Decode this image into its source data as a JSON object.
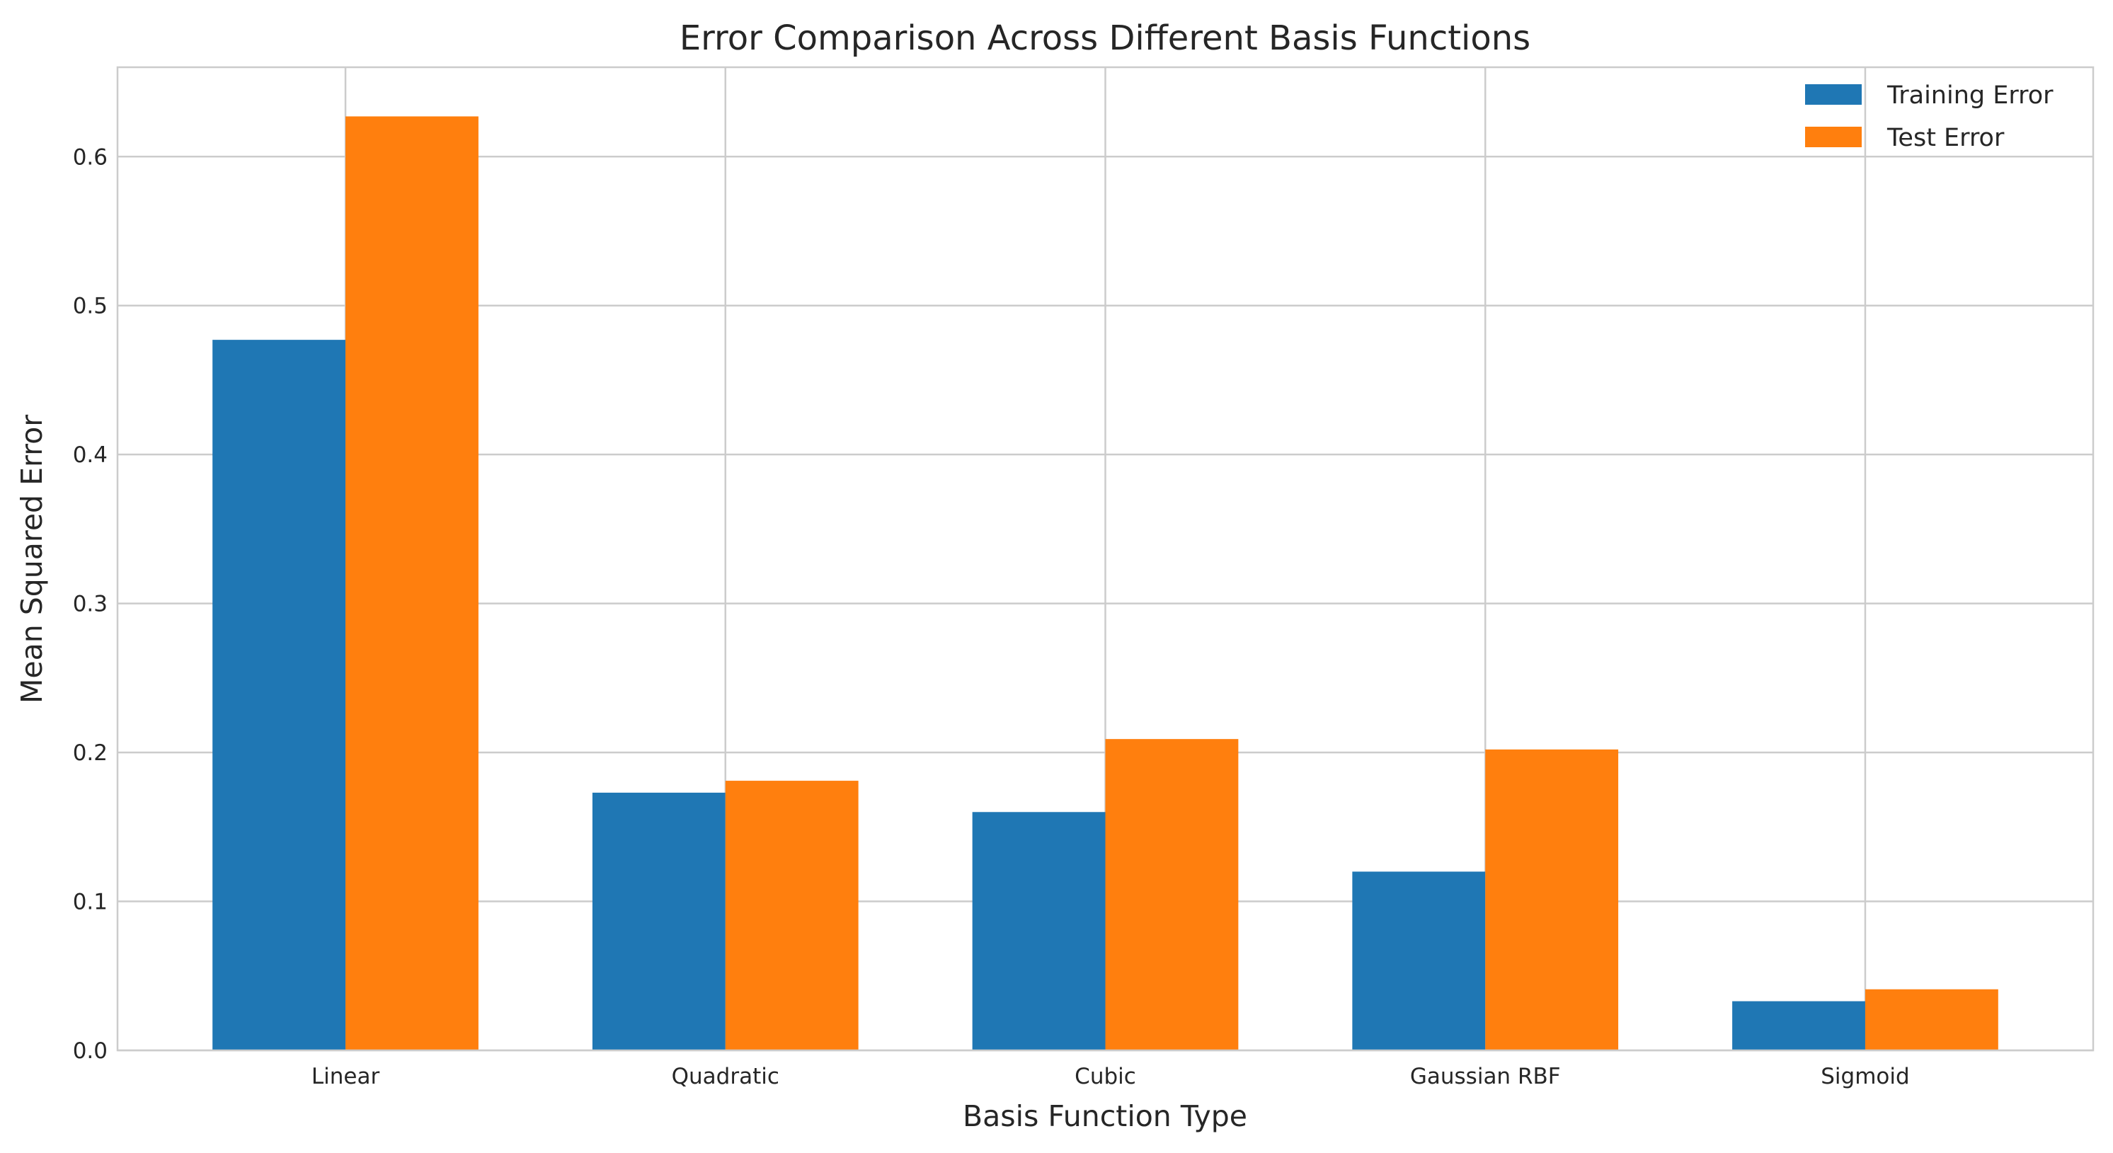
{
  "chart_data": {
    "type": "bar",
    "title": "Error Comparison Across Different Basis Functions",
    "xlabel": "Basis Function Type",
    "ylabel": "Mean Squared Error",
    "categories": [
      "Linear",
      "Quadratic",
      "Cubic",
      "Gaussian RBF",
      "Sigmoid"
    ],
    "series": [
      {
        "name": "Training Error",
        "color": "#1f77b4",
        "values": [
          0.477,
          0.173,
          0.16,
          0.12,
          0.033
        ]
      },
      {
        "name": "Test Error",
        "color": "#ff7f0e",
        "values": [
          0.627,
          0.181,
          0.209,
          0.202,
          0.041
        ]
      }
    ],
    "ylim": [
      0,
      0.66
    ],
    "yticks": [
      "0.0",
      "0.1",
      "0.2",
      "0.3",
      "0.4",
      "0.5",
      "0.6"
    ],
    "grid": true,
    "legend_position": "top-right"
  }
}
